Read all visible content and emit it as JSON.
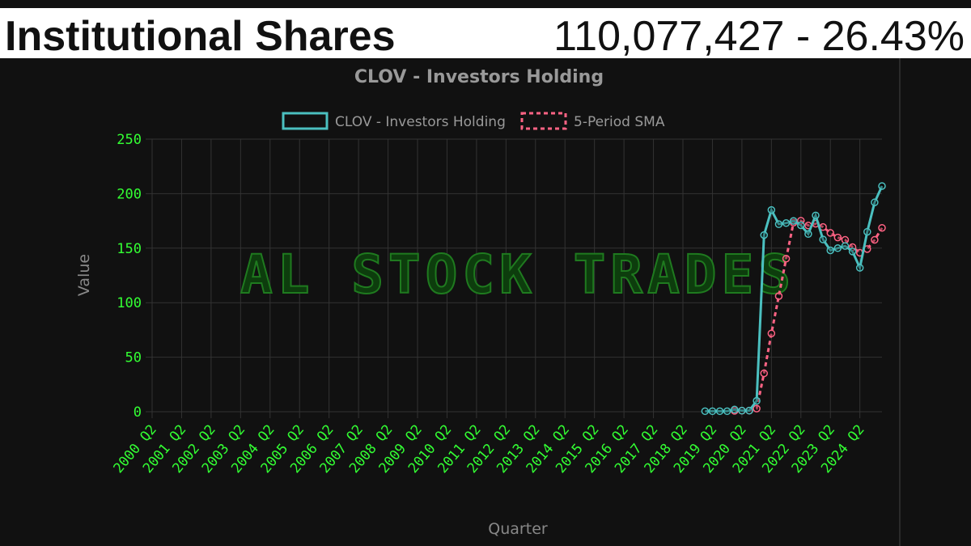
{
  "header": {
    "label": "Institutional Shares",
    "value": "110,077,427 - 26.43%"
  },
  "watermark": "AL STOCK TRADES",
  "chart_data": {
    "type": "line",
    "title": "CLOV - Investors Holding",
    "x_label": "Quarter",
    "y_label": "Value",
    "categories": [
      "2000 Q2",
      null,
      null,
      null,
      "2001 Q2",
      null,
      null,
      null,
      "2002 Q2",
      null,
      null,
      null,
      "2003 Q2",
      null,
      null,
      null,
      "2004 Q2",
      null,
      null,
      null,
      "2005 Q2",
      null,
      null,
      null,
      "2006 Q2",
      null,
      null,
      null,
      "2007 Q2",
      null,
      null,
      null,
      "2008 Q2",
      null,
      null,
      null,
      "2009 Q2",
      null,
      null,
      null,
      "2010 Q2",
      null,
      null,
      null,
      "2011 Q2",
      null,
      null,
      null,
      "2012 Q2",
      null,
      null,
      null,
      "2013 Q2",
      null,
      null,
      null,
      "2014 Q2",
      null,
      null,
      null,
      "2015 Q2",
      null,
      null,
      null,
      "2016 Q2",
      null,
      null,
      null,
      "2017 Q2",
      null,
      null,
      null,
      "2018 Q2",
      null,
      null,
      null,
      "2019 Q2",
      null,
      null,
      null,
      "2020 Q2",
      null,
      null,
      null,
      "2021 Q2",
      null,
      null,
      null,
      "2022 Q2",
      null,
      null,
      null,
      "2023 Q2",
      null,
      null,
      null,
      "2024 Q2",
      null,
      null,
      null
    ],
    "series": [
      {
        "name": "CLOV - Investors Holding",
        "color": "#4bc0c0",
        "dashed": false,
        "values": [
          null,
          null,
          null,
          null,
          null,
          null,
          null,
          null,
          null,
          null,
          null,
          null,
          null,
          null,
          null,
          null,
          null,
          null,
          null,
          null,
          null,
          null,
          null,
          null,
          null,
          null,
          null,
          null,
          null,
          null,
          null,
          null,
          null,
          null,
          null,
          null,
          null,
          null,
          null,
          null,
          null,
          null,
          null,
          null,
          null,
          null,
          null,
          null,
          null,
          null,
          null,
          null,
          null,
          null,
          null,
          null,
          null,
          null,
          null,
          null,
          null,
          null,
          null,
          null,
          null,
          null,
          null,
          null,
          null,
          null,
          null,
          null,
          null,
          null,
          null,
          0.5,
          0.5,
          0.5,
          0.5,
          2,
          1,
          1,
          10,
          162,
          185,
          172,
          173,
          175,
          171,
          163,
          180,
          158,
          148,
          150,
          152,
          147,
          132,
          165,
          192,
          207
        ]
      },
      {
        "name": "5-Period SMA",
        "color": "#ff6384",
        "dashed": true,
        "values": [
          null,
          null,
          null,
          null,
          null,
          null,
          null,
          null,
          null,
          null,
          null,
          null,
          null,
          null,
          null,
          null,
          null,
          null,
          null,
          null,
          null,
          null,
          null,
          null,
          null,
          null,
          null,
          null,
          null,
          null,
          null,
          null,
          null,
          null,
          null,
          null,
          null,
          null,
          null,
          null,
          null,
          null,
          null,
          null,
          null,
          null,
          null,
          null,
          null,
          null,
          null,
          null,
          null,
          null,
          null,
          null,
          null,
          null,
          null,
          null,
          null,
          null,
          null,
          null,
          null,
          null,
          null,
          null,
          null,
          null,
          null,
          null,
          null,
          null,
          null,
          null,
          null,
          null,
          null,
          0.8,
          0.9,
          1,
          2.9,
          35.2,
          71.8,
          106,
          140.4,
          173.4,
          175.2,
          170.8,
          172.4,
          169.4,
          164,
          159.8,
          157.6,
          151,
          145.8,
          149.2,
          157.6,
          168.6
        ]
      }
    ],
    "ylim": [
      0,
      250
    ],
    "yticks": [
      0,
      50,
      100,
      150,
      200,
      250
    ],
    "grid": true
  }
}
